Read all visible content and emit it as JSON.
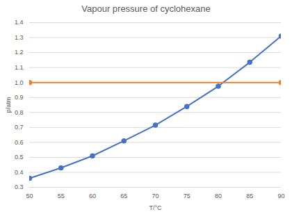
{
  "chart_data": {
    "type": "line",
    "title": "Vapour pressure of cyclohexane",
    "x_label": "T/°C",
    "y_label": "p/atm",
    "x": [
      50,
      55,
      60,
      65,
      70,
      75,
      80,
      85,
      90
    ],
    "series": [
      {
        "color": "#4472c4",
        "marker": "circle",
        "values": [
          0.36,
          0.43,
          0.51,
          0.61,
          0.715,
          0.84,
          0.975,
          1.135,
          1.31
        ]
      },
      {
        "color": "#ed7d31",
        "marker": "circle",
        "x": [
          50,
          90
        ],
        "values": [
          1.0,
          1.0
        ]
      }
    ],
    "xlim": [
      50,
      90
    ],
    "xticks": [
      50,
      55,
      60,
      65,
      70,
      75,
      80,
      85,
      90
    ],
    "ylim": [
      0.3,
      1.4
    ],
    "yticks": [
      0.3,
      0.4,
      0.5,
      0.6,
      0.7,
      0.8,
      0.9,
      {
        "value": 1,
        "label": "1.0"
      },
      1.1,
      1.2,
      1.3,
      1.4
    ],
    "grid": true
  }
}
